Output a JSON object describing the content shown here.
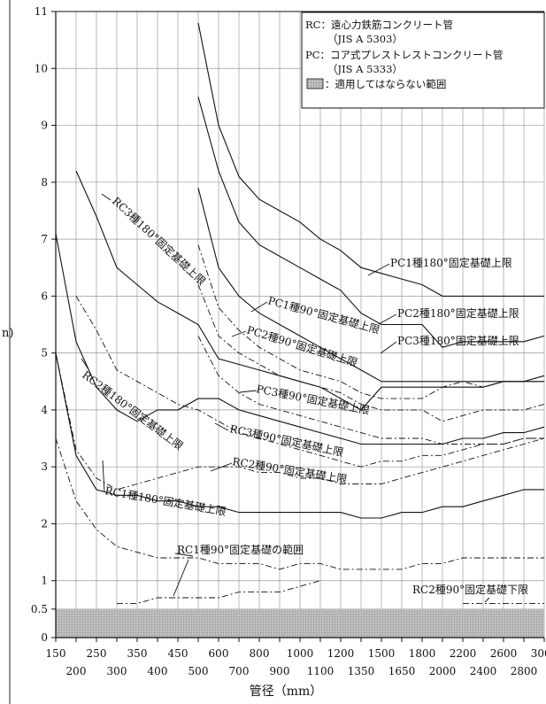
{
  "chart_data": {
    "type": "line",
    "xlabel": "管径（mm）",
    "ylabel_fragment": "n)",
    "x_ticks_top": [
      "150",
      "250",
      "350",
      "450",
      "600",
      "800",
      "1000",
      "1200",
      "1500",
      "1800",
      "2200",
      "2600",
      "3000"
    ],
    "x_ticks_bottom": [
      "200",
      "300",
      "400",
      "500",
      "700",
      "900",
      "1100",
      "1350",
      "1650",
      "2000",
      "2400",
      "2800"
    ],
    "x_categories": [
      "150",
      "200",
      "250",
      "300",
      "350",
      "400",
      "450",
      "500",
      "600",
      "700",
      "800",
      "900",
      "1000",
      "1100",
      "1200",
      "1350",
      "1500",
      "1650",
      "1800",
      "2000",
      "2200",
      "2400",
      "2600",
      "2800",
      "3000"
    ],
    "y_ticks": [
      "0",
      "0.5",
      "1",
      "2",
      "3",
      "4",
      "5",
      "6",
      "7",
      "8",
      "9",
      "10",
      "11"
    ],
    "ylim": [
      0,
      11
    ],
    "hatched_band": [
      0,
      0.5
    ],
    "legend": {
      "rc_line1": "RC：遠心力鉄筋コンクリート管",
      "rc_line2": "（JIS A 5303）",
      "pc_line1": "PC：コア式プレストレストコンクリート管",
      "pc_line2": "（JIS A 5333）",
      "shade": "：適用してはならない範囲"
    },
    "annotations": {
      "rc3_180": "RC3種180°固定基礎上限",
      "rc2_180": "RC2種180°固定基礎上限",
      "rc1_180": "RC1種180°固定基礎上限",
      "rc3_90": "RC3種90°固定基礎上限",
      "rc2_90": "RC2種90°固定基礎上限",
      "rc1_90": "RC1種90°固定基礎の範囲",
      "pc1_180": "PC1種180°固定基礎上限",
      "pc2_180": "PC2種180°固定基礎上限",
      "pc3_180": "PC3種180°固定基礎上限",
      "pc1_90": "PC1種90°固定基礎上限",
      "pc2_90": "PC2種90°固定基礎上限",
      "pc3_90": "PC3種90°固定基礎上限",
      "rc2_90_lower": "RC2種90°固定基礎下限"
    },
    "series": [
      {
        "style": "solid",
        "x": [
          150,
          200,
          250,
          300,
          350,
          400,
          450,
          500,
          600,
          700,
          800,
          900,
          1000,
          1100,
          1200,
          1350,
          1500,
          1650,
          1800,
          2000,
          2200,
          2400,
          2600,
          2800,
          3000
        ],
        "y": [
          7.1,
          5.2,
          4.4,
          4.0,
          3.8,
          4.0,
          4.0,
          4.2,
          4.2,
          4.0,
          3.9,
          3.8,
          3.7,
          3.6,
          3.5,
          3.4,
          3.4,
          3.4,
          3.4,
          3.4,
          3.5,
          3.5,
          3.6,
          3.6,
          3.7
        ]
      },
      {
        "style": "dashdot",
        "x": [
          150,
          200,
          250,
          300,
          350,
          400,
          450,
          500,
          600,
          700,
          800,
          900,
          1000,
          1100,
          1200,
          1350,
          1500,
          1650,
          1800,
          2000,
          2200,
          2400,
          2600,
          2800,
          3000
        ],
        "y": [
          5.0,
          3.3,
          2.8,
          2.6,
          2.7,
          2.8,
          2.9,
          3.0,
          3.0,
          3.0,
          2.9,
          2.9,
          2.8,
          2.8,
          2.7,
          2.7,
          2.7,
          2.8,
          2.9,
          3.0,
          3.1,
          3.2,
          3.3,
          3.4,
          3.5
        ]
      },
      {
        "style": "solid",
        "x": [
          200,
          250,
          300,
          350,
          400,
          450,
          500,
          600,
          700,
          800,
          900,
          1000,
          1100,
          1200,
          1350,
          1500,
          1650,
          1800,
          2000,
          2200,
          2400,
          2600,
          2800,
          3000
        ],
        "y": [
          8.2,
          7.4,
          6.5,
          6.2,
          5.9,
          5.7,
          5.5,
          4.9,
          4.8,
          4.7,
          4.6,
          4.5,
          4.4,
          4.2,
          4.0,
          4.4,
          4.4,
          4.4,
          4.4,
          4.4,
          4.4,
          4.5,
          4.5,
          4.5
        ]
      },
      {
        "style": "dashdot",
        "x": [
          200,
          250,
          300,
          350,
          400,
          450,
          500,
          600,
          700,
          800,
          900,
          1000,
          1100,
          1200,
          1350,
          1500,
          1650,
          1800,
          2000,
          2200,
          2400,
          2600,
          2800,
          3000
        ],
        "y": [
          6.0,
          5.4,
          4.7,
          4.5,
          4.3,
          4.1,
          4.0,
          3.8,
          3.6,
          3.5,
          3.4,
          3.3,
          3.2,
          3.1,
          3.0,
          3.1,
          3.1,
          3.2,
          3.2,
          3.3,
          3.4,
          3.4,
          3.5,
          3.5
        ]
      },
      {
        "style": "solid",
        "x": [
          150,
          200,
          250,
          300,
          350,
          400,
          450,
          500,
          600,
          700,
          800,
          900,
          1000,
          1100,
          1200,
          1350,
          1500,
          1650,
          1800,
          2000,
          2200,
          2400,
          2600,
          2800,
          3000
        ],
        "y": [
          5.0,
          3.2,
          2.6,
          2.5,
          2.5,
          2.4,
          2.4,
          2.3,
          2.3,
          2.2,
          2.2,
          2.2,
          2.2,
          2.2,
          2.2,
          2.1,
          2.1,
          2.2,
          2.2,
          2.3,
          2.3,
          2.4,
          2.5,
          2.6,
          2.6
        ]
      },
      {
        "style": "dashdot",
        "x": [
          150,
          200,
          250,
          300,
          350,
          400,
          450,
          500,
          600,
          700,
          800,
          900,
          1000,
          1100,
          1200,
          1350,
          1500,
          1650,
          1800,
          2000,
          2200,
          2400,
          2600,
          2800,
          3000
        ],
        "y": [
          3.5,
          2.4,
          1.9,
          1.6,
          1.5,
          1.4,
          1.4,
          1.4,
          1.3,
          1.3,
          1.3,
          1.2,
          1.3,
          1.3,
          1.2,
          1.2,
          1.2,
          1.2,
          1.3,
          1.3,
          1.4,
          1.4,
          1.4,
          1.4,
          1.4
        ]
      },
      {
        "style": "dashdot",
        "x": [
          300,
          350,
          400,
          450,
          500,
          600,
          700,
          800,
          900,
          1000,
          1100
        ],
        "y": [
          0.6,
          0.6,
          0.7,
          0.7,
          0.7,
          0.7,
          0.8,
          0.8,
          0.8,
          0.9,
          1.0
        ]
      },
      {
        "style": "dashdot",
        "x": [
          2200,
          2400,
          2600,
          2800,
          3000
        ],
        "y": [
          0.6,
          0.6,
          0.6,
          0.6,
          0.6
        ]
      },
      {
        "style": "solid",
        "x": [
          500,
          600,
          700,
          800,
          900,
          1000,
          1100,
          1200,
          1350,
          1500,
          1650,
          1800,
          2000,
          2200,
          2400,
          2600,
          2800,
          3000
        ],
        "y": [
          10.8,
          9.0,
          8.1,
          7.7,
          7.5,
          7.3,
          7.0,
          6.8,
          6.5,
          6.4,
          6.3,
          6.2,
          6.0,
          6.0,
          6.0,
          6.0,
          6.0,
          6.0
        ]
      },
      {
        "style": "solid",
        "x": [
          500,
          600,
          700,
          800,
          900,
          1000,
          1100,
          1200,
          1350,
          1500,
          1650,
          1800,
          2000,
          2200,
          2400,
          2600,
          2800,
          3000
        ],
        "y": [
          9.5,
          8.2,
          7.3,
          6.9,
          6.7,
          6.5,
          6.3,
          6.1,
          5.7,
          5.5,
          5.5,
          5.5,
          5.1,
          5.2,
          5.2,
          5.2,
          5.2,
          5.3
        ]
      },
      {
        "style": "solid",
        "x": [
          500,
          600,
          700,
          800,
          900,
          1000,
          1100,
          1200,
          1350,
          1500,
          1650,
          1800,
          2000,
          2200,
          2400,
          2600,
          2800,
          3000
        ],
        "y": [
          7.9,
          6.5,
          6.0,
          5.7,
          5.5,
          5.3,
          5.1,
          4.9,
          4.7,
          4.5,
          4.5,
          4.5,
          4.5,
          4.5,
          4.5,
          4.5,
          4.5,
          4.6
        ]
      },
      {
        "style": "dashdot",
        "x": [
          500,
          600,
          700,
          800,
          900,
          1000,
          1100,
          1200,
          1350,
          1500,
          1650,
          1800,
          2000,
          2200,
          2400,
          2600,
          2800,
          3000
        ],
        "y": [
          6.9,
          5.8,
          5.4,
          5.1,
          4.9,
          4.7,
          4.6,
          4.5,
          4.3,
          4.2,
          4.2,
          4.2,
          4.4,
          4.5,
          4.4,
          4.5,
          4.5,
          4.5
        ]
      },
      {
        "style": "dashdot",
        "x": [
          500,
          600,
          700,
          800,
          900,
          1000,
          1100,
          1200,
          1350,
          1500,
          1650,
          1800,
          2000,
          2200,
          2400,
          2600,
          2800,
          3000
        ],
        "y": [
          6.2,
          5.3,
          5.0,
          4.8,
          4.6,
          4.5,
          4.4,
          4.3,
          4.1,
          4.0,
          4.0,
          4.0,
          3.8,
          3.9,
          4.0,
          4.0,
          4.0,
          4.1
        ]
      },
      {
        "style": "dashdot",
        "x": [
          500,
          600,
          700,
          800,
          900,
          1000,
          1100,
          1200,
          1350,
          1500,
          1650,
          1800,
          2000,
          2200,
          2400,
          2600,
          2800,
          3000
        ],
        "y": [
          5.3,
          4.6,
          4.3,
          4.1,
          4.0,
          3.9,
          3.8,
          3.7,
          3.6,
          3.5,
          3.5,
          3.5,
          3.4,
          3.4,
          3.4,
          3.4,
          3.5,
          3.5
        ]
      }
    ]
  }
}
